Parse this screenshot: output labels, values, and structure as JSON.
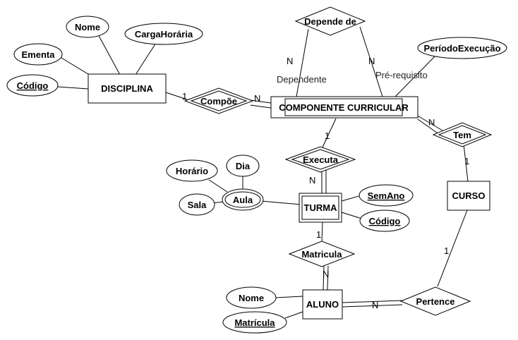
{
  "entities": {
    "disciplina": "DISCIPLINA",
    "componente": "COMPONENTE CURRICULAR",
    "turma": "TURMA",
    "curso": "CURSO",
    "aluno": "ALUNO"
  },
  "relationships": {
    "compoe": "Compõe",
    "depende": "Depende de",
    "executa": "Executa",
    "tem": "Tem",
    "matricula": "Matricula",
    "pertence": "Pertence"
  },
  "attributes": {
    "nome": "Nome",
    "carga": "CargaHorária",
    "ementa": "Ementa",
    "codigo_disc": "Código",
    "periodo": "PeríodoExecução",
    "horario": "Horário",
    "dia": "Dia",
    "sala": "Sala",
    "aula": "Aula",
    "semano": "SemAno",
    "codigo_turma": "Código",
    "nome_aluno": "Nome",
    "matricula_aluno": "Matrícula"
  },
  "cardinalities": {
    "compoe_disc": "1",
    "compoe_comp": "N",
    "dep_left": "N",
    "dep_right": "N",
    "exec_comp": "1",
    "exec_turma": "N",
    "tem_comp": "N",
    "tem_curso": "1",
    "mat_turma": "1",
    "mat_aluno": "N",
    "pert_curso": "1",
    "pert_aluno": "N"
  },
  "roles": {
    "dependente": "Dependente",
    "prerequisito": "Pré-requisito"
  }
}
